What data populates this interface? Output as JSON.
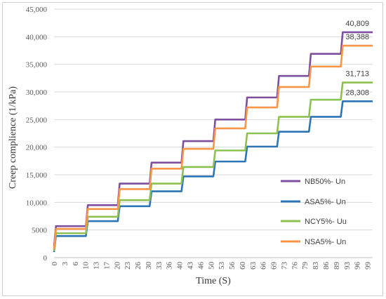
{
  "chart_data": {
    "type": "line",
    "xlabel": "Time (S)",
    "ylabel": "Creep complience (1/kPa)",
    "xlim": [
      0,
      100
    ],
    "ylim": [
      0,
      45000
    ],
    "grid": "horizontal",
    "legend_position": "right",
    "x_tick_labels": [
      "0",
      "3",
      "6",
      "10",
      "13",
      "17",
      "20",
      "23",
      "26",
      "30",
      "33",
      "36",
      "40",
      "43",
      "46",
      "50",
      "53",
      "56",
      "60",
      "63",
      "66",
      "69",
      "73",
      "76",
      "79",
      "83",
      "86",
      "89",
      "93",
      "96",
      "99"
    ],
    "y_tick_labels": [
      "0",
      "5000",
      "10,000",
      "15,000",
      "20,000",
      "25,000",
      "30,000",
      "35,000",
      "40,000",
      "45,000"
    ],
    "y_ticks": [
      0,
      5000,
      10000,
      15000,
      20000,
      25000,
      30000,
      35000,
      40000,
      45000
    ],
    "step_times": [
      0,
      10,
      20,
      30,
      40,
      50,
      60,
      70,
      80,
      90,
      100
    ],
    "series": [
      {
        "name": "NB50%- Un",
        "color": "#7F4F9F",
        "start": 2000,
        "levels": [
          5700,
          9500,
          13400,
          17200,
          21100,
          25000,
          29000,
          32900,
          36900,
          40809
        ],
        "end_label": "40,809"
      },
      {
        "name": "ASA5%- Un",
        "color": "#2E75B6",
        "start": 1000,
        "levels": [
          3900,
          6600,
          9300,
          12000,
          14700,
          17400,
          20100,
          22800,
          25500,
          28308
        ],
        "end_label": "28,308"
      },
      {
        "name": "NCY5%- Uu",
        "color": "#8CC152",
        "start": 1200,
        "levels": [
          4400,
          7400,
          10400,
          13400,
          16400,
          19400,
          22500,
          25500,
          28600,
          31713
        ],
        "end_label": "31,713"
      },
      {
        "name": "NSA5%- Un",
        "color": "#F79646",
        "start": 1500,
        "levels": [
          5200,
          8800,
          12400,
          16100,
          19700,
          23400,
          27200,
          30900,
          34600,
          38388
        ],
        "end_label": "38,388"
      }
    ]
  }
}
